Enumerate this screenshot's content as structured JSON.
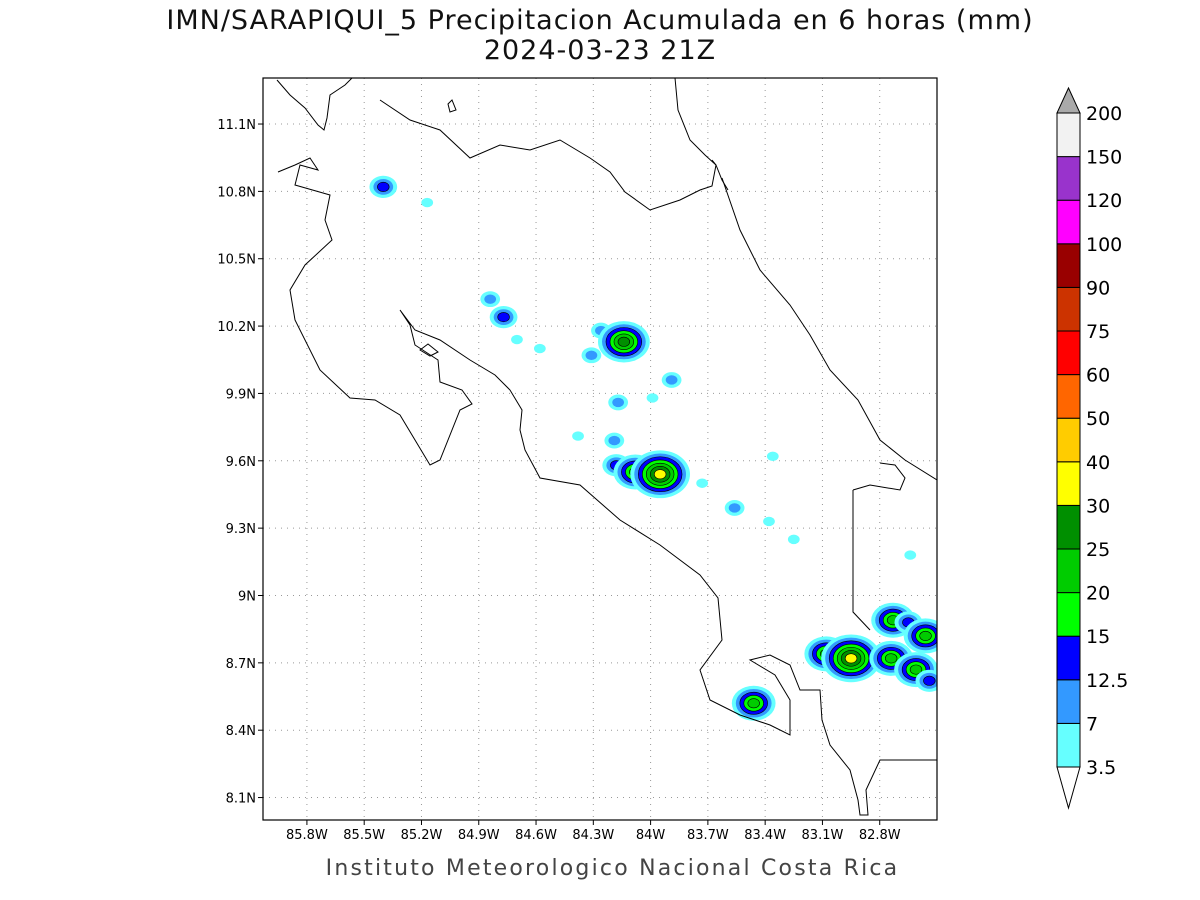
{
  "title": "IMN/SARAPIQUI_5 Precipitacion Acumulada en 6 horas (mm)",
  "subtitle": "2024-03-23 21Z",
  "footer": "Instituto Meteorologico Nacional Costa Rica",
  "map": {
    "lon_range": [
      -86.03,
      -82.5
    ],
    "lat_range": [
      8.0,
      11.305
    ],
    "lon_ticks": [
      {
        "v": -85.8,
        "label": "85.8W"
      },
      {
        "v": -85.5,
        "label": "85.5W"
      },
      {
        "v": -85.2,
        "label": "85.2W"
      },
      {
        "v": -84.9,
        "label": "84.9W"
      },
      {
        "v": -84.6,
        "label": "84.6W"
      },
      {
        "v": -84.3,
        "label": "84.3W"
      },
      {
        "v": -84.0,
        "label": "84W"
      },
      {
        "v": -83.7,
        "label": "83.7W"
      },
      {
        "v": -83.4,
        "label": "83.4W"
      },
      {
        "v": -83.1,
        "label": "83.1W"
      },
      {
        "v": -82.8,
        "label": "82.8W"
      }
    ],
    "lat_ticks": [
      {
        "v": 11.1,
        "label": "11.1N"
      },
      {
        "v": 10.8,
        "label": "10.8N"
      },
      {
        "v": 10.5,
        "label": "10.5N"
      },
      {
        "v": 10.2,
        "label": "10.2N"
      },
      {
        "v": 9.9,
        "label": "9.9N"
      },
      {
        "v": 9.6,
        "label": "9.6N"
      },
      {
        "v": 9.3,
        "label": "9.3N"
      },
      {
        "v": 9.0,
        "label": "9N"
      },
      {
        "v": 8.7,
        "label": "8.7N"
      },
      {
        "v": 8.4,
        "label": "8.4N"
      },
      {
        "v": 8.1,
        "label": "8.1N"
      }
    ]
  },
  "colorbar": {
    "labels": [
      "3.5",
      "7",
      "12.5",
      "15",
      "20",
      "25",
      "30",
      "40",
      "50",
      "60",
      "75",
      "90",
      "100",
      "120",
      "150",
      "200"
    ],
    "colors": [
      "#66ffff",
      "#3399ff",
      "#0000ff",
      "#00ff00",
      "#00cc00",
      "#008f00",
      "#ffff00",
      "#ffcc00",
      "#ff6600",
      "#ff0000",
      "#cc3300",
      "#990000",
      "#ff00ff",
      "#9933cc",
      "#f2f2f2"
    ],
    "over_color": "#aaaaaa",
    "under_color": "#ffffff"
  },
  "precip_cells": [
    {
      "lon": -85.4,
      "lat": 10.82,
      "max": 12.5
    },
    {
      "lon": -85.17,
      "lat": 10.75,
      "max": 3.5
    },
    {
      "lon": -84.84,
      "lat": 10.32,
      "max": 7
    },
    {
      "lon": -84.77,
      "lat": 10.24,
      "max": 12.5
    },
    {
      "lon": -84.7,
      "lat": 10.14,
      "max": 3.5
    },
    {
      "lon": -84.58,
      "lat": 10.1,
      "max": 3.5
    },
    {
      "lon": -84.26,
      "lat": 10.18,
      "max": 7
    },
    {
      "lon": -84.14,
      "lat": 10.13,
      "max": 25
    },
    {
      "lon": -84.31,
      "lat": 10.07,
      "max": 7
    },
    {
      "lon": -83.89,
      "lat": 9.96,
      "max": 7
    },
    {
      "lon": -84.17,
      "lat": 9.86,
      "max": 7
    },
    {
      "lon": -83.99,
      "lat": 9.88,
      "max": 3.5
    },
    {
      "lon": -84.38,
      "lat": 9.71,
      "max": 3.5
    },
    {
      "lon": -84.19,
      "lat": 9.69,
      "max": 7
    },
    {
      "lon": -84.18,
      "lat": 9.58,
      "max": 12.5
    },
    {
      "lon": -84.08,
      "lat": 9.55,
      "max": 20
    },
    {
      "lon": -83.95,
      "lat": 9.54,
      "max": 30
    },
    {
      "lon": -83.73,
      "lat": 9.5,
      "max": 3.5
    },
    {
      "lon": -83.56,
      "lat": 9.39,
      "max": 7
    },
    {
      "lon": -83.36,
      "lat": 9.62,
      "max": 3.5
    },
    {
      "lon": -83.38,
      "lat": 9.33,
      "max": 3.5
    },
    {
      "lon": -83.25,
      "lat": 9.25,
      "max": 3.5
    },
    {
      "lon": -82.64,
      "lat": 9.18,
      "max": 3.5
    },
    {
      "lon": -83.46,
      "lat": 8.52,
      "max": 20
    },
    {
      "lon": -83.08,
      "lat": 8.74,
      "max": 20
    },
    {
      "lon": -82.95,
      "lat": 8.72,
      "max": 30
    },
    {
      "lon": -82.73,
      "lat": 8.89,
      "max": 20
    },
    {
      "lon": -82.65,
      "lat": 8.88,
      "max": 12.5
    },
    {
      "lon": -82.56,
      "lat": 8.82,
      "max": 20
    },
    {
      "lon": -82.74,
      "lat": 8.72,
      "max": 20
    },
    {
      "lon": -82.61,
      "lat": 8.67,
      "max": 20
    },
    {
      "lon": -82.54,
      "lat": 8.62,
      "max": 12.5
    }
  ]
}
